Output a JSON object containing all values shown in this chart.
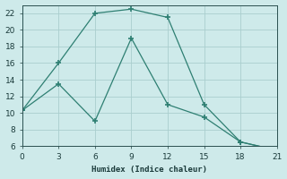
{
  "line1_x": [
    0,
    3,
    6,
    9,
    12,
    15,
    18,
    21
  ],
  "line1_y": [
    10.3,
    16,
    22,
    22.5,
    21.5,
    11,
    6.5,
    5.5
  ],
  "line2_x": [
    0,
    3,
    6,
    9,
    12,
    15,
    18,
    21
  ],
  "line2_y": [
    10.3,
    13.5,
    9,
    19,
    11,
    9.5,
    6.5,
    5.5
  ],
  "color": "#2e7f72",
  "xlabel": "Humidex (Indice chaleur)",
  "xlim": [
    0,
    21
  ],
  "ylim_min": 6,
  "ylim_max": 23,
  "xticks": [
    0,
    3,
    6,
    9,
    12,
    15,
    18,
    21
  ],
  "yticks": [
    6,
    8,
    10,
    12,
    14,
    16,
    18,
    20,
    22
  ],
  "bg_color": "#ceeaea",
  "grid_color": "#aacece"
}
